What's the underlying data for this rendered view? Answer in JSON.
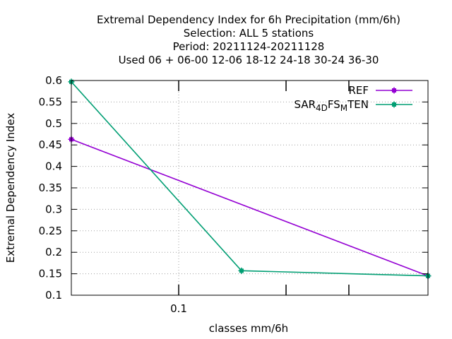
{
  "chart_data": {
    "type": "line",
    "title_lines": [
      "Extremal Dependency Index  for 6h Precipitation (mm/6h)",
      "Selection: ALL      5 stations",
      "Period: 20211124-20211128",
      "Used  06  + 06-00 12-06 18-12 24-18 30-24 36-30"
    ],
    "xlabel": "classes mm/6h",
    "ylabel": "Extremal Dependency Index",
    "x_scale": "log",
    "xlim": [
      0.05,
      0.5
    ],
    "ylim": [
      0.1,
      0.6
    ],
    "y_ticks": [
      "0.1",
      "0.15",
      "0.2",
      "0.25",
      "0.3",
      "0.35",
      "0.4",
      "0.45",
      "0.5",
      "0.55",
      "0.6"
    ],
    "x_tick_labels": [
      {
        "value": 0.1,
        "label": "0.1"
      }
    ],
    "x_minor_ticks": [
      0.2,
      0.3
    ],
    "grid": true,
    "legend_position": "top-right",
    "series": [
      {
        "name": "REF",
        "color": "#9400d3",
        "x": [
          0.05,
          0.5
        ],
        "y": [
          0.463,
          0.145
        ]
      },
      {
        "name_parts": [
          {
            "text": "SAR",
            "sub": false
          },
          {
            "text": "4D",
            "sub": true
          },
          {
            "text": "FS",
            "sub": false
          },
          {
            "text": "M",
            "sub": true
          },
          {
            "text": "TEN",
            "sub": false
          }
        ],
        "color": "#009e73",
        "x": [
          0.05,
          0.15,
          0.5
        ],
        "y": [
          0.597,
          0.157,
          0.145
        ]
      }
    ]
  }
}
